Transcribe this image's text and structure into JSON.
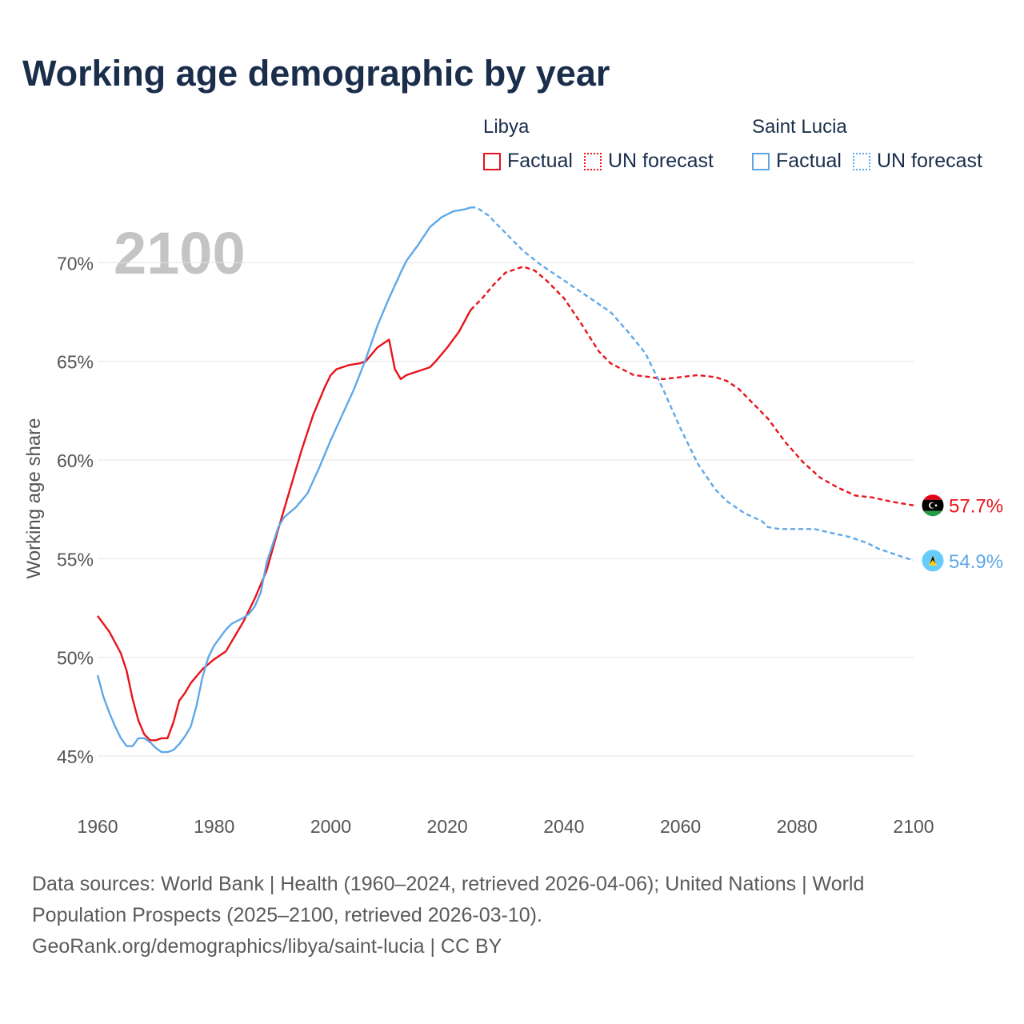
{
  "title": "Working age demographic by year",
  "legend": {
    "groups": [
      {
        "name": "Libya",
        "color": "#e8131b",
        "factual": "Factual",
        "forecast": "UN forecast"
      },
      {
        "name": "Saint Lucia",
        "color": "#5fa8e8",
        "factual": "Factual",
        "forecast": "UN forecast"
      }
    ]
  },
  "footer": {
    "line1": "Data sources: World Bank | Health (1960–2024, retrieved 2026-04-06); United Nations | World",
    "line2": "Population Prospects (2025–2100, retrieved 2026-03-10).",
    "line3": "GeoRank.org/demographics/libya/saint-lucia | CC BY"
  },
  "chart_data": {
    "type": "line",
    "title": "Working age demographic by year",
    "year_watermark": "2100",
    "ylabel": "Working age share",
    "xlabel": "",
    "xlim": [
      1960,
      2100
    ],
    "ylim": [
      43.5,
      73.5
    ],
    "x_ticks": [
      "1960",
      "1980",
      "2000",
      "2020",
      "2040",
      "2060",
      "2080",
      "2100"
    ],
    "y_ticks": [
      "45%",
      "50%",
      "55%",
      "60%",
      "65%",
      "70%"
    ],
    "forecast_start": 2024,
    "series": [
      {
        "name": "Libya",
        "color": "#e8131b",
        "end_label": "57.7%",
        "flag_icon": "libya-flag-icon",
        "points": [
          [
            1960,
            52.1
          ],
          [
            1962,
            51.3
          ],
          [
            1964,
            50.2
          ],
          [
            1965,
            49.3
          ],
          [
            1966,
            47.9
          ],
          [
            1967,
            46.8
          ],
          [
            1968,
            46.1
          ],
          [
            1969,
            45.8
          ],
          [
            1970,
            45.8
          ],
          [
            1971,
            45.9
          ],
          [
            1972,
            45.9
          ],
          [
            1973,
            46.7
          ],
          [
            1974,
            47.8
          ],
          [
            1975,
            48.2
          ],
          [
            1976,
            48.7
          ],
          [
            1978,
            49.4
          ],
          [
            1980,
            49.9
          ],
          [
            1982,
            50.3
          ],
          [
            1983,
            50.8
          ],
          [
            1985,
            51.8
          ],
          [
            1987,
            53.0
          ],
          [
            1989,
            54.4
          ],
          [
            1991,
            56.5
          ],
          [
            1993,
            58.5
          ],
          [
            1995,
            60.5
          ],
          [
            1997,
            62.3
          ],
          [
            1999,
            63.7
          ],
          [
            2000,
            64.3
          ],
          [
            2001,
            64.6
          ],
          [
            2003,
            64.8
          ],
          [
            2005,
            64.9
          ],
          [
            2006,
            65.0
          ],
          [
            2008,
            65.7
          ],
          [
            2010,
            66.1
          ],
          [
            2011,
            64.6
          ],
          [
            2012,
            64.1
          ],
          [
            2013,
            64.3
          ],
          [
            2015,
            64.5
          ],
          [
            2017,
            64.7
          ],
          [
            2018,
            65.0
          ],
          [
            2020,
            65.7
          ],
          [
            2022,
            66.5
          ],
          [
            2024,
            67.6
          ],
          [
            2026,
            68.2
          ],
          [
            2028,
            68.9
          ],
          [
            2030,
            69.5
          ],
          [
            2033,
            69.8
          ],
          [
            2035,
            69.6
          ],
          [
            2037,
            69.1
          ],
          [
            2040,
            68.2
          ],
          [
            2043,
            66.9
          ],
          [
            2046,
            65.5
          ],
          [
            2048,
            64.9
          ],
          [
            2050,
            64.6
          ],
          [
            2052,
            64.3
          ],
          [
            2055,
            64.2
          ],
          [
            2057,
            64.1
          ],
          [
            2060,
            64.2
          ],
          [
            2063,
            64.3
          ],
          [
            2066,
            64.2
          ],
          [
            2068,
            64.0
          ],
          [
            2070,
            63.6
          ],
          [
            2072,
            63.0
          ],
          [
            2075,
            62.1
          ],
          [
            2078,
            60.9
          ],
          [
            2081,
            59.9
          ],
          [
            2084,
            59.1
          ],
          [
            2087,
            58.6
          ],
          [
            2090,
            58.2
          ],
          [
            2093,
            58.1
          ],
          [
            2096,
            57.9
          ],
          [
            2098,
            57.8
          ],
          [
            2100,
            57.7
          ]
        ]
      },
      {
        "name": "Saint Lucia",
        "color": "#5fa8e8",
        "end_label": "54.9%",
        "flag_icon": "saint-lucia-flag-icon",
        "points": [
          [
            1960,
            49.1
          ],
          [
            1961,
            48.0
          ],
          [
            1962,
            47.2
          ],
          [
            1963,
            46.5
          ],
          [
            1964,
            45.9
          ],
          [
            1965,
            45.5
          ],
          [
            1966,
            45.5
          ],
          [
            1967,
            45.9
          ],
          [
            1968,
            45.9
          ],
          [
            1969,
            45.7
          ],
          [
            1970,
            45.4
          ],
          [
            1971,
            45.2
          ],
          [
            1972,
            45.2
          ],
          [
            1973,
            45.3
          ],
          [
            1974,
            45.6
          ],
          [
            1975,
            46.0
          ],
          [
            1976,
            46.5
          ],
          [
            1977,
            47.6
          ],
          [
            1978,
            49.0
          ],
          [
            1979,
            50.0
          ],
          [
            1980,
            50.6
          ],
          [
            1981,
            51.0
          ],
          [
            1982,
            51.4
          ],
          [
            1983,
            51.7
          ],
          [
            1985,
            52.0
          ],
          [
            1986,
            52.2
          ],
          [
            1987,
            52.6
          ],
          [
            1988,
            53.3
          ],
          [
            1989,
            54.8
          ],
          [
            1990,
            55.7
          ],
          [
            1991,
            56.6
          ],
          [
            1992,
            57.1
          ],
          [
            1994,
            57.6
          ],
          [
            1996,
            58.3
          ],
          [
            1998,
            59.6
          ],
          [
            2000,
            61.0
          ],
          [
            2002,
            62.3
          ],
          [
            2004,
            63.6
          ],
          [
            2006,
            65.1
          ],
          [
            2008,
            66.8
          ],
          [
            2010,
            68.2
          ],
          [
            2012,
            69.5
          ],
          [
            2013,
            70.1
          ],
          [
            2015,
            70.9
          ],
          [
            2017,
            71.8
          ],
          [
            2019,
            72.3
          ],
          [
            2021,
            72.6
          ],
          [
            2023,
            72.7
          ],
          [
            2024,
            72.8
          ],
          [
            2025,
            72.8
          ],
          [
            2027,
            72.4
          ],
          [
            2030,
            71.5
          ],
          [
            2033,
            70.6
          ],
          [
            2036,
            69.9
          ],
          [
            2039,
            69.3
          ],
          [
            2042,
            68.7
          ],
          [
            2045,
            68.1
          ],
          [
            2048,
            67.5
          ],
          [
            2051,
            66.5
          ],
          [
            2054,
            65.4
          ],
          [
            2057,
            63.6
          ],
          [
            2060,
            61.6
          ],
          [
            2063,
            59.8
          ],
          [
            2066,
            58.5
          ],
          [
            2068,
            57.9
          ],
          [
            2071,
            57.3
          ],
          [
            2074,
            56.9
          ],
          [
            2075,
            56.6
          ],
          [
            2077,
            56.5
          ],
          [
            2080,
            56.5
          ],
          [
            2083,
            56.5
          ],
          [
            2086,
            56.3
          ],
          [
            2089,
            56.1
          ],
          [
            2092,
            55.8
          ],
          [
            2094,
            55.5
          ],
          [
            2097,
            55.2
          ],
          [
            2100,
            54.9
          ]
        ]
      }
    ]
  }
}
